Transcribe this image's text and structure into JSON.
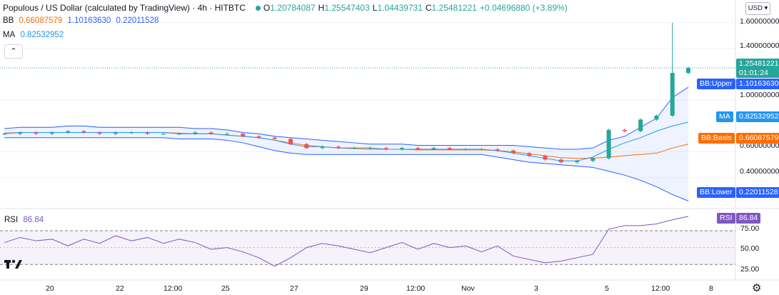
{
  "header": {
    "title": "Populous / US Dollar (calculated by TradingView) · 4h · HITBTC",
    "ohlc": {
      "o_label": "O",
      "o_value": "1.20784087",
      "h_label": "H",
      "h_value": "1.25547403",
      "l_label": "L",
      "l_value": "1.04439731",
      "c_label": "C",
      "c_value": "1.25481221",
      "change": "+0.04696880 (+3.89%)"
    }
  },
  "bb_legend": {
    "name": "BB",
    "basis": "0.66087579",
    "upper": "1.10163630",
    "lower": "0.22011528"
  },
  "ma_legend": {
    "name": "MA",
    "value": "0.82532952"
  },
  "collapse_icon": "chevron-up-icon",
  "currency": "USD",
  "price_axis": [
    "1.60000000",
    "1.40000000",
    "1.00000000",
    "0.60000000",
    "0.40000000"
  ],
  "tags": {
    "price": "1.25481221",
    "countdown": "01:01:24",
    "bb_upper_label": "BB:Upper",
    "bb_upper_value": "1.10163630",
    "ma_label": "MA",
    "ma_value": "0.82532952",
    "bb_basis_label": "BB:Basis",
    "bb_basis_value": "0.66087579",
    "bb_lower_label": "BB:Lower",
    "bb_lower_value": "0.22011528"
  },
  "rsi": {
    "name": "RSI",
    "value": "86.84",
    "axis": [
      "75.00",
      "50.00",
      "25.00"
    ],
    "tag_label": "RSI",
    "tag_value": "86.84"
  },
  "time_axis": [
    "20",
    "22",
    "12:00",
    "25",
    "27",
    "29",
    "12:00",
    "Nov",
    "3",
    "5",
    "12:00",
    "8"
  ],
  "colors": {
    "up": "#26a69a",
    "down": "#ef5350",
    "bb_band": "#2962ff",
    "bb_basis": "#ff6d00",
    "ma": "#2196f3",
    "rsi_line": "#7e57c2",
    "rsi_fill": "#7e57c2"
  },
  "chart_data": {
    "type": "candlestick",
    "x": [
      "Oct 19",
      "Oct 19 12:00",
      "Oct 20",
      "Oct 20 12:00",
      "Oct 21",
      "Oct 21 12:00",
      "Oct 22",
      "Oct 22 12:00",
      "Oct 23",
      "Oct 23 12:00",
      "Oct 24",
      "Oct 24 12:00",
      "Oct 25",
      "Oct 25 12:00",
      "Oct 26",
      "Oct 26 12:00",
      "Oct 27",
      "Oct 27 12:00",
      "Oct 28",
      "Oct 28 12:00",
      "Oct 29",
      "Oct 29 12:00",
      "Oct 30",
      "Oct 30 12:00",
      "Oct 31",
      "Oct 31 12:00",
      "Nov 1",
      "Nov 1 12:00",
      "Nov 2",
      "Nov 2 12:00",
      "Nov 3",
      "Nov 3 12:00",
      "Nov 4",
      "Nov 4 12:00",
      "Nov 5",
      "Nov 5 12:00",
      "Nov 6",
      "Nov 6 06:00",
      "Nov 6 12:00",
      "Nov 6 18:00",
      "Nov 7",
      "Nov 7 06:00",
      "Nov 7 12:00",
      "Nov 7 16:00"
    ],
    "close": [
      0.74,
      0.75,
      0.74,
      0.75,
      0.76,
      0.75,
      0.74,
      0.75,
      0.75,
      0.74,
      0.74,
      0.74,
      0.75,
      0.74,
      0.74,
      0.72,
      0.71,
      0.7,
      0.66,
      0.63,
      0.64,
      0.63,
      0.63,
      0.63,
      0.62,
      0.63,
      0.62,
      0.63,
      0.62,
      0.62,
      0.62,
      0.61,
      0.59,
      0.57,
      0.54,
      0.52,
      0.53,
      0.55,
      0.77,
      0.76,
      0.85,
      0.88,
      1.21,
      1.25
    ],
    "bb_upper": [
      0.78,
      0.79,
      0.79,
      0.79,
      0.8,
      0.8,
      0.79,
      0.79,
      0.79,
      0.79,
      0.79,
      0.79,
      0.78,
      0.78,
      0.77,
      0.75,
      0.74,
      0.72,
      0.71,
      0.7,
      0.69,
      0.68,
      0.67,
      0.66,
      0.66,
      0.66,
      0.65,
      0.65,
      0.65,
      0.65,
      0.65,
      0.65,
      0.65,
      0.64,
      0.63,
      0.62,
      0.62,
      0.63,
      0.69,
      0.72,
      0.79,
      0.86,
      1.02,
      1.1
    ],
    "bb_lower": [
      0.71,
      0.71,
      0.71,
      0.71,
      0.71,
      0.71,
      0.71,
      0.71,
      0.71,
      0.71,
      0.71,
      0.7,
      0.7,
      0.7,
      0.69,
      0.67,
      0.64,
      0.61,
      0.59,
      0.58,
      0.58,
      0.58,
      0.58,
      0.58,
      0.58,
      0.58,
      0.58,
      0.58,
      0.58,
      0.58,
      0.58,
      0.56,
      0.54,
      0.52,
      0.51,
      0.5,
      0.49,
      0.48,
      0.45,
      0.42,
      0.38,
      0.33,
      0.27,
      0.22
    ],
    "bb_basis": [
      0.745,
      0.75,
      0.75,
      0.75,
      0.75,
      0.75,
      0.75,
      0.75,
      0.75,
      0.75,
      0.75,
      0.745,
      0.74,
      0.74,
      0.73,
      0.72,
      0.71,
      0.69,
      0.67,
      0.65,
      0.64,
      0.63,
      0.625,
      0.62,
      0.62,
      0.62,
      0.615,
      0.615,
      0.615,
      0.615,
      0.615,
      0.61,
      0.6,
      0.585,
      0.57,
      0.555,
      0.55,
      0.55,
      0.56,
      0.57,
      0.58,
      0.59,
      0.63,
      0.66
    ],
    "ma": [
      0.74,
      0.75,
      0.75,
      0.75,
      0.75,
      0.75,
      0.75,
      0.75,
      0.75,
      0.75,
      0.75,
      0.74,
      0.74,
      0.74,
      0.73,
      0.72,
      0.71,
      0.69,
      0.66,
      0.64,
      0.64,
      0.63,
      0.63,
      0.63,
      0.62,
      0.62,
      0.62,
      0.62,
      0.62,
      0.62,
      0.62,
      0.61,
      0.59,
      0.57,
      0.55,
      0.53,
      0.53,
      0.56,
      0.62,
      0.67,
      0.71,
      0.76,
      0.8,
      0.83
    ],
    "rsi": [
      56,
      62,
      58,
      60,
      52,
      60,
      55,
      64,
      58,
      62,
      55,
      60,
      56,
      48,
      50,
      45,
      38,
      28,
      38,
      50,
      55,
      52,
      48,
      44,
      50,
      56,
      48,
      55,
      50,
      52,
      45,
      52,
      40,
      36,
      32,
      34,
      38,
      42,
      72,
      76,
      76,
      78,
      83,
      87
    ],
    "price_ylim": [
      0.2,
      1.62
    ],
    "rsi_ylim": [
      15,
      92
    ],
    "rsi_bands": [
      30,
      70
    ]
  }
}
